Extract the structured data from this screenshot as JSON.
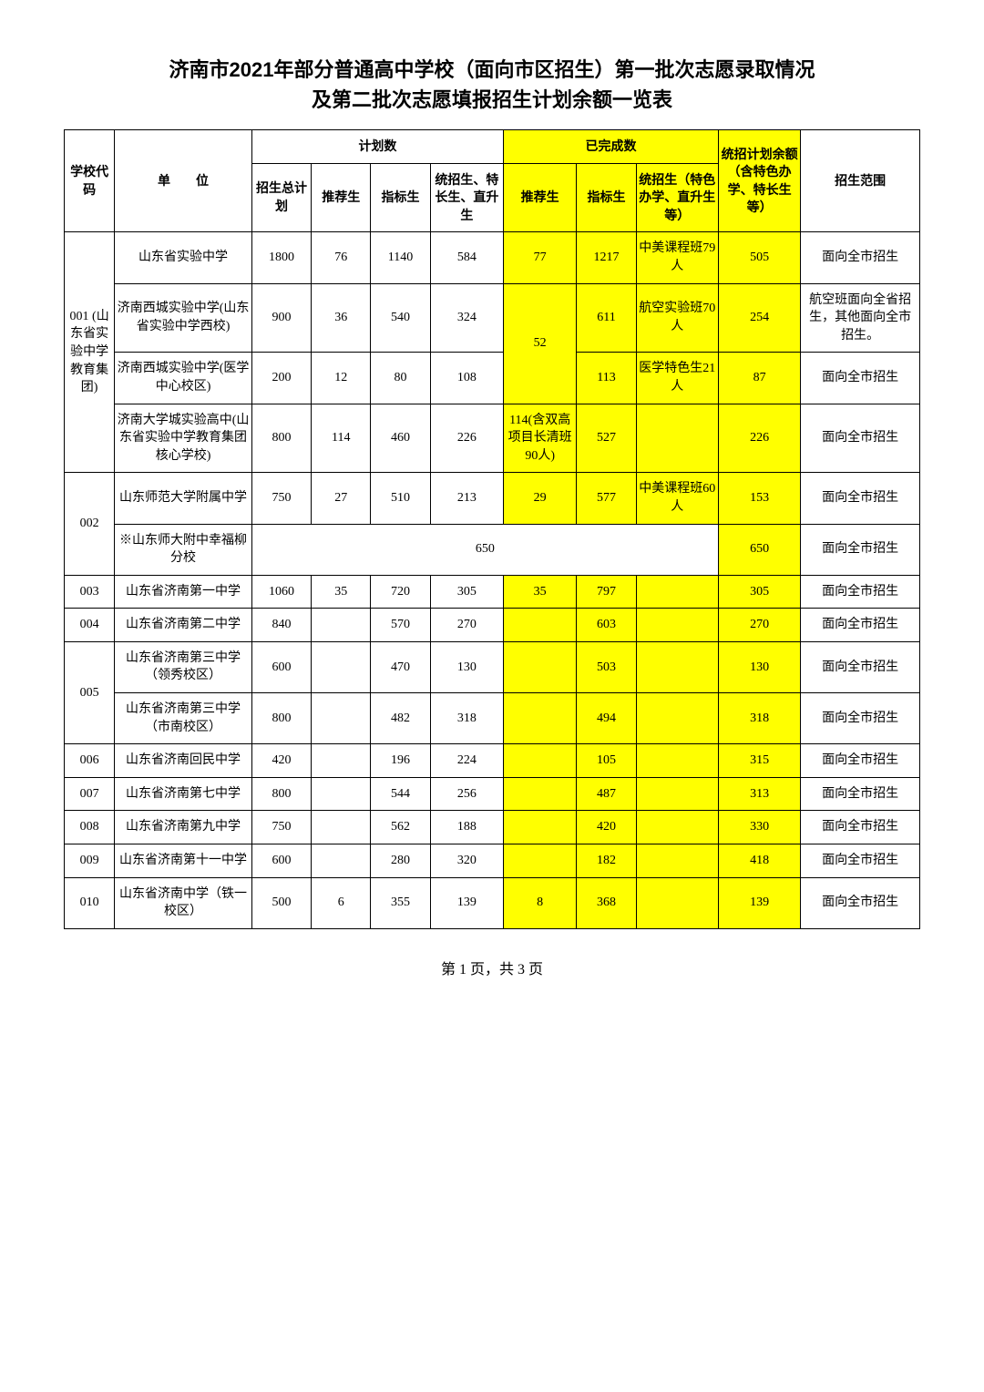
{
  "colors": {
    "highlight": "#ffff00",
    "border": "#000000",
    "background": "#ffffff",
    "text": "#000000"
  },
  "typography": {
    "title_fontsize": 22,
    "title_family": "SimHei",
    "body_fontsize": 14,
    "body_family": "SimSun"
  },
  "col_widths_pct": [
    5.5,
    15,
    6.5,
    6.5,
    6.5,
    8,
    8,
    6.5,
    9,
    9,
    13
  ],
  "title_line1": "济南市2021年部分普通高中学校（面向市区招生）第一批次志愿录取情况",
  "title_line2": "及第二批次志愿填报招生计划余额一览表",
  "headers": {
    "code": "学校代码",
    "unit": "单　　位",
    "plan_group": "计划数",
    "done_group": "已完成数",
    "remain": "统招计划余额（含特色办学、特长生等）",
    "scope": "招生范围",
    "plan_total": "招生总计划",
    "plan_rec": "推荐生",
    "plan_idx": "指标生",
    "plan_gen": "统招生、特长生、直升生",
    "done_rec": "推荐生",
    "done_idx": "指标生",
    "done_gen": "统招生（特色办学、直升生等）"
  },
  "rows": [
    {
      "code": "001 (山东省实验中学教育集团)",
      "code_rowspan": 4,
      "unit": "山东省实验中学",
      "plan_total": "1800",
      "plan_rec": "76",
      "plan_idx": "1140",
      "plan_gen": "584",
      "done_rec": "77",
      "done_idx": "1217",
      "done_gen": "中美课程班79人",
      "remain": "505",
      "scope": "面向全市招生",
      "done_rec_rowspan": 1
    },
    {
      "unit": "济南西城实验中学(山东省实验中学西校)",
      "plan_total": "900",
      "plan_rec": "36",
      "plan_idx": "540",
      "plan_gen": "324",
      "done_rec": "52",
      "done_rec_rowspan": 2,
      "done_idx": "611",
      "done_gen": "航空实验班70人",
      "remain": "254",
      "scope": "航空班面向全省招生，其他面向全市招生。"
    },
    {
      "unit": "济南西城实验中学(医学中心校区)",
      "plan_total": "200",
      "plan_rec": "12",
      "plan_idx": "80",
      "plan_gen": "108",
      "done_idx": "113",
      "done_gen": "医学特色生21人",
      "remain": "87",
      "scope": "面向全市招生"
    },
    {
      "unit": "济南大学城实验高中(山东省实验中学教育集团核心学校)",
      "plan_total": "800",
      "plan_rec": "114",
      "plan_idx": "460",
      "plan_gen": "226",
      "done_rec": "114(含双高项目长清班90人)",
      "done_rec_rowspan": 1,
      "done_idx": "527",
      "done_gen": "",
      "remain": "226",
      "scope": "面向全市招生"
    },
    {
      "code": "002",
      "code_rowspan": 2,
      "unit": "山东师范大学附属中学",
      "plan_total": "750",
      "plan_rec": "27",
      "plan_idx": "510",
      "plan_gen": "213",
      "done_rec": "29",
      "done_rec_rowspan": 1,
      "done_idx": "577",
      "done_gen": "中美课程班60人",
      "remain": "153",
      "scope": "面向全市招生"
    },
    {
      "unit": "※山东师大附中幸福柳分校",
      "merged_plan": "650",
      "remain": "650",
      "scope": "面向全市招生"
    },
    {
      "code": "003",
      "code_rowspan": 1,
      "unit": "山东省济南第一中学",
      "plan_total": "1060",
      "plan_rec": "35",
      "plan_idx": "720",
      "plan_gen": "305",
      "done_rec": "35",
      "done_rec_rowspan": 1,
      "done_idx": "797",
      "done_gen": "",
      "remain": "305",
      "scope": "面向全市招生"
    },
    {
      "code": "004",
      "code_rowspan": 1,
      "unit": "山东省济南第二中学",
      "plan_total": "840",
      "plan_rec": "",
      "plan_idx": "570",
      "plan_gen": "270",
      "done_rec": "",
      "done_rec_rowspan": 1,
      "done_idx": "603",
      "done_gen": "",
      "remain": "270",
      "scope": "面向全市招生"
    },
    {
      "code": "005",
      "code_rowspan": 2,
      "unit": "山东省济南第三中学（领秀校区）",
      "plan_total": "600",
      "plan_rec": "",
      "plan_idx": "470",
      "plan_gen": "130",
      "done_rec": "",
      "done_rec_rowspan": 1,
      "done_idx": "503",
      "done_gen": "",
      "remain": "130",
      "scope": "面向全市招生"
    },
    {
      "unit": "山东省济南第三中学（市南校区）",
      "plan_total": "800",
      "plan_rec": "",
      "plan_idx": "482",
      "plan_gen": "318",
      "done_rec": "",
      "done_rec_rowspan": 1,
      "done_idx": "494",
      "done_gen": "",
      "remain": "318",
      "scope": "面向全市招生"
    },
    {
      "code": "006",
      "code_rowspan": 1,
      "unit": "山东省济南回民中学",
      "plan_total": "420",
      "plan_rec": "",
      "plan_idx": "196",
      "plan_gen": "224",
      "done_rec": "",
      "done_rec_rowspan": 1,
      "done_idx": "105",
      "done_gen": "",
      "remain": "315",
      "scope": "面向全市招生"
    },
    {
      "code": "007",
      "code_rowspan": 1,
      "unit": "山东省济南第七中学",
      "plan_total": "800",
      "plan_rec": "",
      "plan_idx": "544",
      "plan_gen": "256",
      "done_rec": "",
      "done_rec_rowspan": 1,
      "done_idx": "487",
      "done_gen": "",
      "remain": "313",
      "scope": "面向全市招生"
    },
    {
      "code": "008",
      "code_rowspan": 1,
      "unit": "山东省济南第九中学",
      "plan_total": "750",
      "plan_rec": "",
      "plan_idx": "562",
      "plan_gen": "188",
      "done_rec": "",
      "done_rec_rowspan": 1,
      "done_idx": "420",
      "done_gen": "",
      "remain": "330",
      "scope": "面向全市招生"
    },
    {
      "code": "009",
      "code_rowspan": 1,
      "unit": "山东省济南第十一中学",
      "plan_total": "600",
      "plan_rec": "",
      "plan_idx": "280",
      "plan_gen": "320",
      "done_rec": "",
      "done_rec_rowspan": 1,
      "done_idx": "182",
      "done_gen": "",
      "remain": "418",
      "scope": "面向全市招生"
    },
    {
      "code": "010",
      "code_rowspan": 1,
      "unit": "山东省济南中学（铁一校区）",
      "plan_total": "500",
      "plan_rec": "6",
      "plan_idx": "355",
      "plan_gen": "139",
      "done_rec": "8",
      "done_rec_rowspan": 1,
      "done_idx": "368",
      "done_gen": "",
      "remain": "139",
      "scope": "面向全市招生"
    }
  ],
  "footer": "第 1 页，共 3 页"
}
